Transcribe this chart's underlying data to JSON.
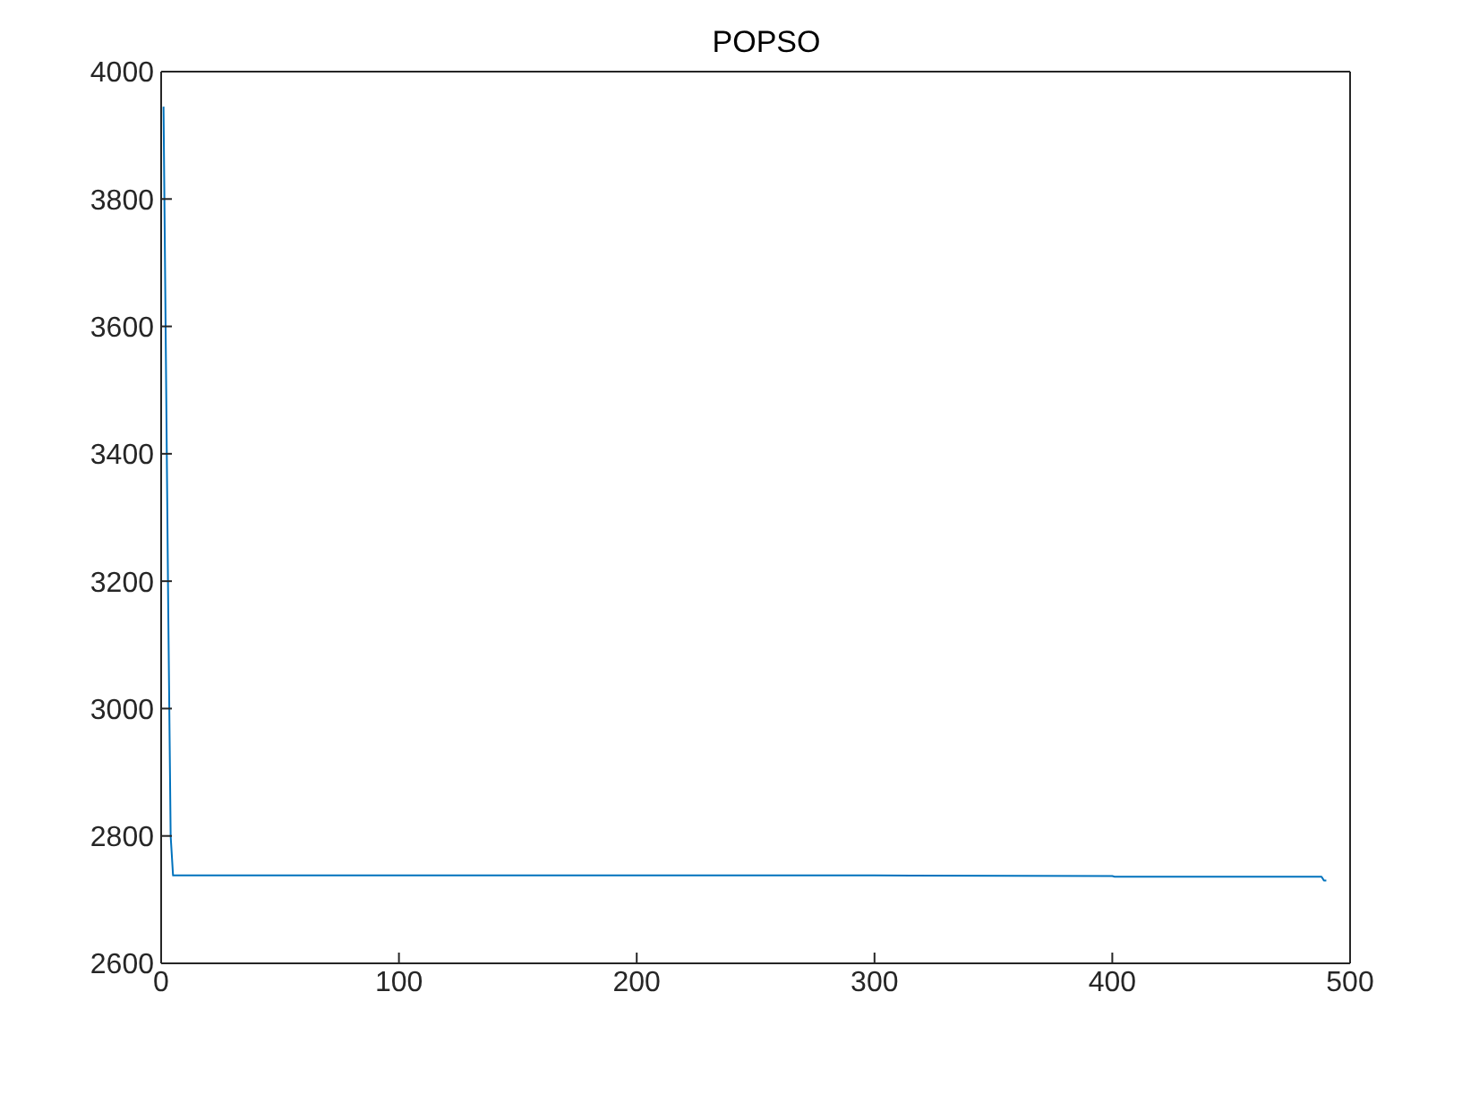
{
  "chart_data": {
    "type": "line",
    "title": "POPSO",
    "x": [
      1,
      2,
      3,
      4,
      5,
      50,
      100,
      200,
      300,
      400,
      401,
      488,
      489,
      490
    ],
    "series": [
      {
        "color": "#0072bd",
        "values": [
          3945,
          3550,
          3150,
          2800,
          2738,
          2738,
          2738,
          2738,
          2738,
          2737,
          2736,
          2736,
          2730,
          2730
        ]
      }
    ],
    "xlim": [
      0,
      500
    ],
    "xticks": [
      0,
      100,
      200,
      300,
      400,
      500
    ],
    "ylim": [
      2600,
      4000
    ],
    "yticks": [
      2600,
      2800,
      3000,
      3200,
      3400,
      3600,
      3800,
      4000
    ],
    "grid": false,
    "marker": "none",
    "line_style": "solid"
  }
}
